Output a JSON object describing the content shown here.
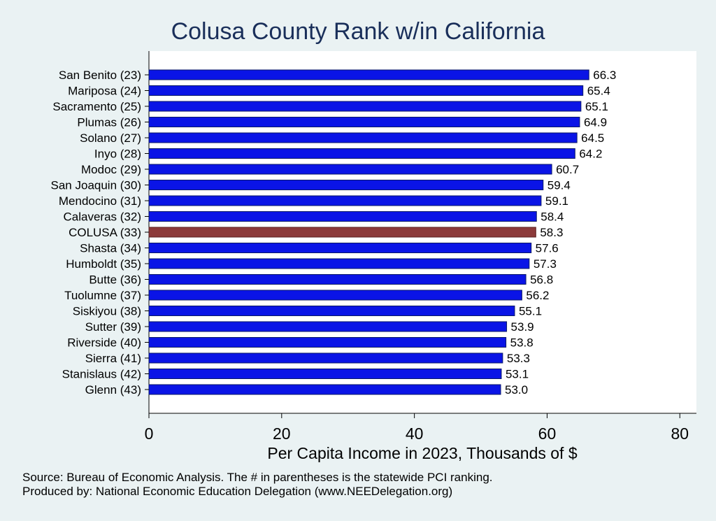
{
  "chart_data": {
    "type": "bar",
    "orientation": "horizontal",
    "title": "Colusa County Rank w/in California",
    "xlabel": "Per Capita Income in 2023, Thousands of $",
    "xlim": [
      0,
      82.5
    ],
    "xticks": [
      0,
      20,
      40,
      60,
      80
    ],
    "grid": false,
    "categories": [
      "San Benito (23)",
      "Mariposa (24)",
      "Sacramento (25)",
      "Plumas (26)",
      "Solano (27)",
      "Inyo (28)",
      "Modoc (29)",
      "San Joaquin (30)",
      "Mendocino (31)",
      "Calaveras (32)",
      "COLUSA (33)",
      "Shasta (34)",
      "Humboldt (35)",
      "Butte (36)",
      "Tuolumne (37)",
      "Siskiyou (38)",
      "Sutter (39)",
      "Riverside (40)",
      "Sierra (41)",
      "Stanislaus (42)",
      "Glenn (43)"
    ],
    "values": [
      66.3,
      65.4,
      65.1,
      64.9,
      64.5,
      64.2,
      60.7,
      59.4,
      59.1,
      58.4,
      58.3,
      57.6,
      57.3,
      56.8,
      56.2,
      55.1,
      53.9,
      53.8,
      53.3,
      53.1,
      53.0
    ],
    "value_labels": [
      "66.3",
      "65.4",
      "65.1",
      "64.9",
      "64.5",
      "64.2",
      "60.7",
      "59.4",
      "59.1",
      "58.4",
      "58.3",
      "57.6",
      "57.3",
      "56.8",
      "56.2",
      "55.1",
      "53.9",
      "53.8",
      "53.3",
      "53.1",
      "53.0"
    ],
    "highlight_category": "COLUSA (33)",
    "colors": {
      "bar": "#0a14e6",
      "highlight": "#8c3a3a",
      "bar_edge": "#0b1a66",
      "text": "#000000",
      "title": "#1a2f5a"
    }
  },
  "notes": {
    "source": "Source: Bureau of Economic Analysis. The # in parentheses is the statewide PCI ranking.",
    "producer": "Produced by: National Economic Education Delegation (www.NEEDelegation.org)"
  }
}
